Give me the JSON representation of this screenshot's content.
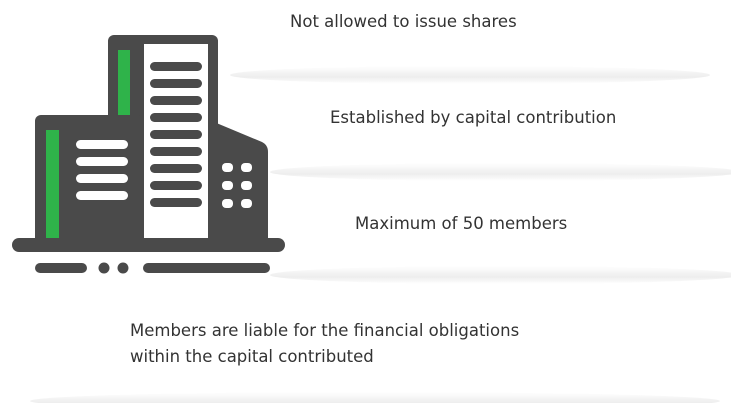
{
  "items": [
    {
      "lines": [
        "Not allowed to issue shares"
      ]
    },
    {
      "lines": [
        "Established by capital contribution"
      ]
    },
    {
      "lines": [
        "Maximum of 50 members"
      ]
    },
    {
      "lines": [
        "Members are liable for the financial obligations",
        "within the capital contributed"
      ]
    }
  ]
}
